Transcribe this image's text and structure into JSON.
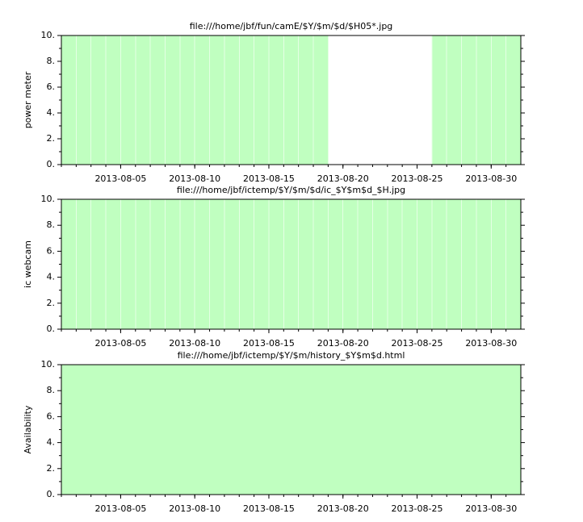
{
  "chart_data": [
    {
      "type": "bar",
      "title": "file:///home/jbf/fun/camE/$Y/$m/$d/$H05*.jpg",
      "y_label": "power meter",
      "x": [
        "2013-08-01",
        "2013-08-02",
        "2013-08-03",
        "2013-08-04",
        "2013-08-05",
        "2013-08-06",
        "2013-08-07",
        "2013-08-08",
        "2013-08-09",
        "2013-08-10",
        "2013-08-11",
        "2013-08-12",
        "2013-08-13",
        "2013-08-14",
        "2013-08-15",
        "2013-08-16",
        "2013-08-17",
        "2013-08-18",
        "2013-08-19",
        "2013-08-20",
        "2013-08-21",
        "2013-08-22",
        "2013-08-23",
        "2013-08-24",
        "2013-08-25",
        "2013-08-26",
        "2013-08-27",
        "2013-08-28",
        "2013-08-29",
        "2013-08-30",
        "2013-08-31"
      ],
      "values": [
        10,
        10,
        10,
        10,
        10,
        10,
        10,
        10,
        10,
        10,
        10,
        10,
        10,
        10,
        10,
        10,
        10,
        10,
        0,
        0,
        0,
        0,
        0,
        0,
        0,
        10,
        10,
        10,
        10,
        10,
        10
      ],
      "color": "#c0ffc0",
      "edgecolor": "#e4ffe4",
      "xlim": [
        "2013-08-01",
        "2013-09-01"
      ],
      "xticks": [
        "2013-08-05",
        "2013-08-10",
        "2013-08-15",
        "2013-08-20",
        "2013-08-25",
        "2013-08-30"
      ],
      "ylim": [
        0,
        10
      ],
      "yticks": [
        {
          "value": 0,
          "label": "0."
        },
        {
          "value": 2,
          "label": "2."
        },
        {
          "value": 4,
          "label": "4."
        },
        {
          "value": 6,
          "label": "6."
        },
        {
          "value": 8,
          "label": "8."
        },
        {
          "value": 10,
          "label": "10."
        }
      ],
      "yminorticks": [
        1,
        3,
        5,
        7,
        9
      ]
    },
    {
      "type": "bar",
      "title": "file:///home/jbf/ictemp/$Y/$m/$d/ic_$Y$m$d_$H.jpg",
      "y_label": "ic webcam",
      "x": [
        "2013-08-01",
        "2013-08-02",
        "2013-08-03",
        "2013-08-04",
        "2013-08-05",
        "2013-08-06",
        "2013-08-07",
        "2013-08-08",
        "2013-08-09",
        "2013-08-10",
        "2013-08-11",
        "2013-08-12",
        "2013-08-13",
        "2013-08-14",
        "2013-08-15",
        "2013-08-16",
        "2013-08-17",
        "2013-08-18",
        "2013-08-19",
        "2013-08-20",
        "2013-08-21",
        "2013-08-22",
        "2013-08-23",
        "2013-08-24",
        "2013-08-25",
        "2013-08-26",
        "2013-08-27",
        "2013-08-28",
        "2013-08-29",
        "2013-08-30",
        "2013-08-31"
      ],
      "values": [
        10,
        10,
        10,
        10,
        10,
        10,
        10,
        10,
        10,
        10,
        10,
        10,
        10,
        10,
        10,
        10,
        10,
        10,
        10,
        10,
        10,
        10,
        10,
        10,
        10,
        10,
        10,
        10,
        10,
        10,
        10
      ],
      "color": "#c0ffc0",
      "edgecolor": "#e4ffe4",
      "xlim": [
        "2013-08-01",
        "2013-09-01"
      ],
      "xticks": [
        "2013-08-05",
        "2013-08-10",
        "2013-08-15",
        "2013-08-20",
        "2013-08-25",
        "2013-08-30"
      ],
      "ylim": [
        0,
        10
      ],
      "yticks": [
        {
          "value": 0,
          "label": "0."
        },
        {
          "value": 2,
          "label": "2."
        },
        {
          "value": 4,
          "label": "4."
        },
        {
          "value": 6,
          "label": "6."
        },
        {
          "value": 8,
          "label": "8."
        },
        {
          "value": 10,
          "label": "10."
        }
      ],
      "yminorticks": [
        1,
        3,
        5,
        7,
        9
      ]
    },
    {
      "type": "bar",
      "title": "file:///home/jbf/ictemp/$Y/$m/history_$Y$m$d.html",
      "y_label": "Availability",
      "x": [
        "2013-08-01",
        "2013-08-02",
        "2013-08-03",
        "2013-08-04",
        "2013-08-05",
        "2013-08-06",
        "2013-08-07",
        "2013-08-08",
        "2013-08-09",
        "2013-08-10",
        "2013-08-11",
        "2013-08-12",
        "2013-08-13",
        "2013-08-14",
        "2013-08-15",
        "2013-08-16",
        "2013-08-17",
        "2013-08-18",
        "2013-08-19",
        "2013-08-20",
        "2013-08-21",
        "2013-08-22",
        "2013-08-23",
        "2013-08-24",
        "2013-08-25",
        "2013-08-26",
        "2013-08-27",
        "2013-08-28",
        "2013-08-29",
        "2013-08-30",
        "2013-08-31"
      ],
      "values": [
        10,
        10,
        10,
        10,
        10,
        10,
        10,
        10,
        10,
        10,
        10,
        10,
        10,
        10,
        10,
        10,
        10,
        10,
        10,
        10,
        10,
        10,
        10,
        10,
        10,
        10,
        10,
        10,
        10,
        10,
        10
      ],
      "color": "#c0ffc0",
      "xlim": [
        "2013-08-01",
        "2013-09-01"
      ],
      "xticks": [
        "2013-08-05",
        "2013-08-10",
        "2013-08-15",
        "2013-08-20",
        "2013-08-25",
        "2013-08-30"
      ],
      "ylim": [
        0,
        10
      ],
      "yticks": [
        {
          "value": 0,
          "label": "0."
        },
        {
          "value": 2,
          "label": "2."
        },
        {
          "value": 4,
          "label": "4."
        },
        {
          "value": 6,
          "label": "6."
        },
        {
          "value": 8,
          "label": "8."
        },
        {
          "value": 10,
          "label": "10."
        }
      ],
      "yminorticks": [
        1,
        3,
        5,
        7,
        9
      ]
    }
  ]
}
